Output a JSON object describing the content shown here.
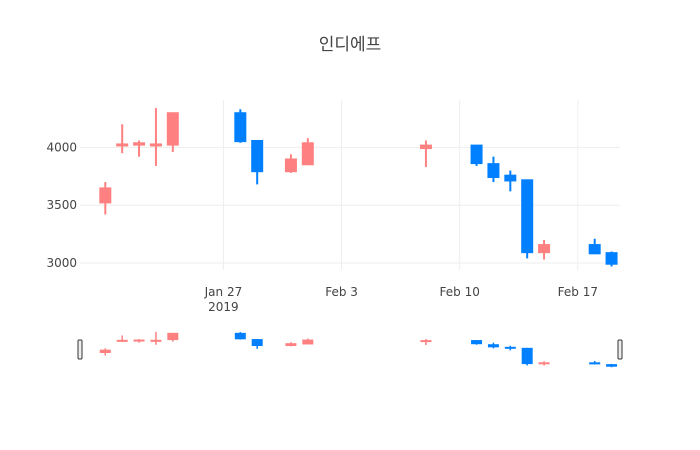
{
  "chart_data": {
    "type": "candlestick",
    "title": "인디에프",
    "xlabel": "",
    "ylabel": "",
    "y_range": [
      2940,
      4410
    ],
    "x_range": [
      "2019-01-19",
      "2019-02-19"
    ],
    "y_ticks": [
      3000,
      3500,
      4000
    ],
    "x_ticks": [
      {
        "date": "2019-01-27",
        "label": "Jan 27",
        "sublabel": "2019"
      },
      {
        "date": "2019-02-03",
        "label": "Feb 3",
        "sublabel": ""
      },
      {
        "date": "2019-02-10",
        "label": "Feb 10",
        "sublabel": ""
      },
      {
        "date": "2019-02-17",
        "label": "Feb 17",
        "sublabel": ""
      }
    ],
    "increasing_color": "#ff8080",
    "decreasing_color": "#0080ff",
    "grid": true,
    "rangeslider": true,
    "candles": [
      {
        "date": "2019-01-20",
        "open": 3520,
        "high": 3700,
        "low": 3420,
        "close": 3650
      },
      {
        "date": "2019-01-21",
        "open": 4020,
        "high": 4200,
        "low": 3950,
        "close": 4030
      },
      {
        "date": "2019-01-22",
        "open": 4020,
        "high": 4060,
        "low": 3920,
        "close": 4040
      },
      {
        "date": "2019-01-23",
        "open": 4020,
        "high": 4340,
        "low": 3840,
        "close": 4030
      },
      {
        "date": "2019-01-24",
        "open": 4020,
        "high": 4300,
        "low": 3960,
        "close": 4300
      },
      {
        "date": "2019-01-28",
        "open": 4300,
        "high": 4330,
        "low": 4040,
        "close": 4050
      },
      {
        "date": "2019-01-29",
        "open": 4060,
        "high": 4060,
        "low": 3680,
        "close": 3790
      },
      {
        "date": "2019-01-31",
        "open": 3790,
        "high": 3940,
        "low": 3780,
        "close": 3900
      },
      {
        "date": "2019-02-01",
        "open": 3850,
        "high": 4080,
        "low": 3850,
        "close": 4040
      },
      {
        "date": "2019-02-08",
        "open": 3990,
        "high": 4060,
        "low": 3830,
        "close": 4020
      },
      {
        "date": "2019-02-11",
        "open": 4020,
        "high": 4020,
        "low": 3840,
        "close": 3860
      },
      {
        "date": "2019-02-12",
        "open": 3860,
        "high": 3920,
        "low": 3700,
        "close": 3740
      },
      {
        "date": "2019-02-13",
        "open": 3760,
        "high": 3800,
        "low": 3620,
        "close": 3710
      },
      {
        "date": "2019-02-14",
        "open": 3720,
        "high": 3720,
        "low": 3040,
        "close": 3090
      },
      {
        "date": "2019-02-15",
        "open": 3090,
        "high": 3200,
        "low": 3030,
        "close": 3160
      },
      {
        "date": "2019-02-18",
        "open": 3160,
        "high": 3210,
        "low": 3080,
        "close": 3080
      },
      {
        "date": "2019-02-19",
        "open": 3090,
        "high": 3100,
        "low": 2970,
        "close": 2990
      }
    ]
  }
}
